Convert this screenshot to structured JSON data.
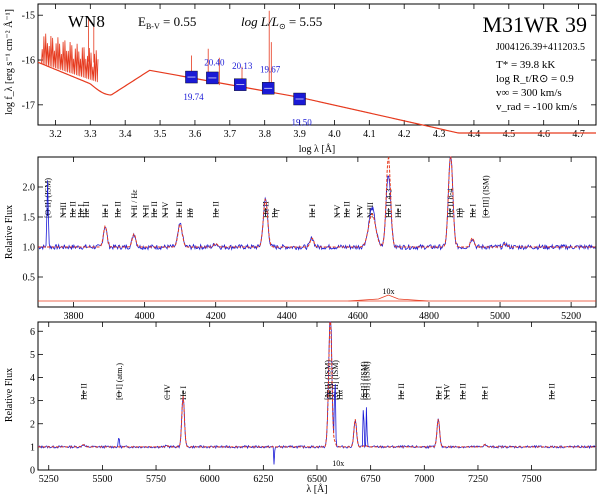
{
  "header": {
    "spectral_type": "WN8",
    "extinction": "E",
    "extinction_sub": "B-V",
    "extinction_val": " = 0.55",
    "lum": "log L/L",
    "lum_sub": "⊙",
    "lum_val": " = 5.55",
    "star_name": "M31WR 39",
    "designation": "J004126.39+411203.5",
    "params": [
      {
        "text": "T* =  39.8 kK",
        "color": "#000000"
      },
      {
        "text": "log R_t/R⊙ =  0.9",
        "color": "#000000"
      },
      {
        "text": "v∞ =  300 km/s",
        "color": "#000000"
      },
      {
        "text": "v_rad =  -100 km/s",
        "color": "#1a1ad6"
      }
    ]
  },
  "colors": {
    "model": "#e63a1e",
    "observed": "#1a1ad6",
    "phot": "#1a1ad6"
  },
  "chart_data": [
    {
      "type": "line",
      "panel": "SED",
      "xlabel": "log λ [Å]",
      "ylabel": "log f_λ [erg s⁻¹ cm⁻² Å⁻¹]",
      "xlim": [
        3.15,
        4.75
      ],
      "ylim": [
        -17.45,
        -14.75
      ],
      "xticks": [
        "3.2",
        "3.3",
        "3.4",
        "3.5",
        "3.6",
        "3.7",
        "3.8",
        "3.9",
        "4.0",
        "4.1",
        "4.2",
        "4.3",
        "4.4",
        "4.5",
        "4.6",
        "4.7"
      ],
      "yticks": [
        "-15",
        "-16",
        "-17"
      ],
      "photometry": [
        {
          "x": 3.59,
          "y": -16.38,
          "mag": "19.74",
          "mag_dy": -0.45
        },
        {
          "x": 3.65,
          "y": -16.4,
          "mag": "20.40",
          "mag_dy": 0.35
        },
        {
          "x": 3.73,
          "y": -16.55,
          "mag": "20.13",
          "mag_dy": 0.42
        },
        {
          "x": 3.81,
          "y": -16.63,
          "mag": "19.67",
          "mag_dy": 0.42
        },
        {
          "x": 3.9,
          "y": -16.87,
          "mag": "19.50",
          "mag_dy": -0.52
        }
      ]
    },
    {
      "type": "line",
      "panel": "blue",
      "xlabel": "",
      "ylabel": "Relative Flux",
      "xlim": [
        3700,
        5270
      ],
      "ylim": [
        0,
        2.5
      ],
      "xticks": [
        "3800",
        "4000",
        "4200",
        "4400",
        "4600",
        "4800",
        "5000",
        "5200"
      ],
      "yticks": [
        "0.5",
        "1.0",
        "1.5",
        "2.0"
      ],
      "inset_label": "10x",
      "lines": [
        {
          "x": 3727,
          "label": "[O II] (ISM)",
          "len": 38
        },
        {
          "x": 3770,
          "label": "N III",
          "len": 24
        },
        {
          "x": 3797,
          "label": "He II",
          "len": 30
        },
        {
          "x": 3820,
          "label": "He I",
          "len": 30
        },
        {
          "x": 3835,
          "label": "He II",
          "len": 38
        },
        {
          "x": 3889,
          "label": "He I",
          "len": 30
        },
        {
          "x": 3924,
          "label": "He II",
          "len": 38
        },
        {
          "x": 3970,
          "label": "N II / Hε",
          "len": 30
        },
        {
          "x": 4003,
          "label": "N II",
          "len": 30
        },
        {
          "x": 4026,
          "label": "He II",
          "len": 34
        },
        {
          "x": 4058,
          "label": "N IV",
          "len": 30
        },
        {
          "x": 4097,
          "label": "He II",
          "len": 30
        },
        {
          "x": 4102,
          "label": "Hδ",
          "len": 30
        },
        {
          "x": 4200,
          "label": "He II",
          "len": 30
        },
        {
          "x": 4340,
          "label": "He II",
          "len": 30
        },
        {
          "x": 4340,
          "label": "Hγ",
          "len": 30
        },
        {
          "x": 4471,
          "label": "He I",
          "len": 30
        },
        {
          "x": 4541,
          "label": "N V",
          "len": 30
        },
        {
          "x": 4542,
          "label": "He II",
          "len": 30
        },
        {
          "x": 4605,
          "label": "N V",
          "len": 30
        },
        {
          "x": 4634,
          "label": "N III",
          "len": 30
        },
        {
          "x": 4686,
          "label": "He II 4-3",
          "len": 30
        },
        {
          "x": 4713,
          "label": "He I",
          "len": 30
        },
        {
          "x": 4859,
          "label": "He II 8-4",
          "len": 30
        },
        {
          "x": 4861,
          "label": "Hβ",
          "len": 30
        },
        {
          "x": 4922,
          "label": "He I",
          "len": 30
        },
        {
          "x": 4959,
          "label": "[O III] (ISM)",
          "len": 40
        }
      ]
    },
    {
      "type": "line",
      "panel": "red",
      "xlabel": "λ [Å]",
      "ylabel": "Relative Flux",
      "xlim": [
        5200,
        7800
      ],
      "ylim": [
        0,
        6.4
      ],
      "xticks": [
        "5250",
        "5500",
        "5750",
        "6000",
        "6250",
        "6500",
        "6750",
        "7000",
        "7250",
        "7500"
      ],
      "yticks": [
        "0",
        "1",
        "2",
        "3",
        "4",
        "5",
        "6"
      ],
      "inset_label": "10x",
      "lines": [
        {
          "x": 5411,
          "label": "He II",
          "len": 30
        },
        {
          "x": 5577,
          "label": "[O I] (atm.)",
          "len": 30
        },
        {
          "x": 5801,
          "label": "C IV",
          "len": 30
        },
        {
          "x": 5876,
          "label": "He I",
          "len": 30
        },
        {
          "x": 6548,
          "label": "[N II] (ISM)",
          "len": 30
        },
        {
          "x": 6560,
          "label": "He II",
          "len": 30
        },
        {
          "x": 6563,
          "label": "Hα",
          "len": 30
        },
        {
          "x": 6584,
          "label": "[N II] (ISM)",
          "len": 30
        },
        {
          "x": 6717,
          "label": "[S II] (ISM)",
          "len": 30
        },
        {
          "x": 6731,
          "label": "[S II] (ISM)",
          "len": 30
        },
        {
          "x": 6891,
          "label": "He II",
          "len": 30
        },
        {
          "x": 7065,
          "label": "He I",
          "len": 30
        },
        {
          "x": 7103,
          "label": "N IV",
          "len": 30
        },
        {
          "x": 7178,
          "label": "He II",
          "len": 30
        },
        {
          "x": 7281,
          "label": "He I",
          "len": 30
        },
        {
          "x": 7593,
          "label": "He II",
          "len": 30
        }
      ]
    }
  ]
}
